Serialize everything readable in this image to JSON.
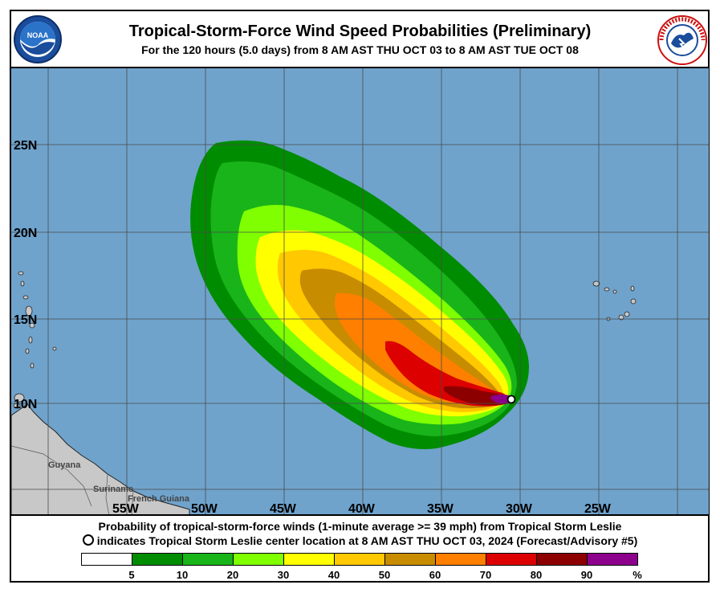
{
  "header": {
    "title": "Tropical-Storm-Force Wind Speed Probabilities (Preliminary)",
    "subtitle": "For the 120 hours (5.0 days) from 8 AM AST THU OCT 03 to 8 AM AST TUE OCT 08",
    "left_logo": {
      "text": "NOAA",
      "icon": "noaa-logo-icon"
    },
    "right_logo": {
      "text": "NATIONAL WEATHER SERVICE",
      "icon": "nws-logo-icon"
    }
  },
  "map": {
    "lat_labels": [
      "25N",
      "20N",
      "15N",
      "10N"
    ],
    "lon_labels": [
      "55W",
      "50W",
      "45W",
      "40W",
      "35W",
      "30W",
      "25W"
    ],
    "place_labels": [
      "Guyana",
      "Suriname",
      "French Guiana"
    ],
    "storm_center": {
      "lon": "30.5W",
      "lat": "10.2N"
    },
    "colors": {
      "ocean": "#6fa3cc",
      "land": "#c8c8c8"
    }
  },
  "footer": {
    "line1": "Probability of tropical-storm-force winds (1-minute average >= 39 mph) from Tropical Storm Leslie",
    "line2": "indicates Tropical Storm Leslie center location at 8 AM AST THU OCT 03, 2024 (Forecast/Advisory #5)"
  },
  "legend": {
    "colors": [
      "#ffffff",
      "#008c00",
      "#19b419",
      "#7fff00",
      "#ffff00",
      "#ffc800",
      "#c88c00",
      "#ff7f00",
      "#dc0000",
      "#8c0000",
      "#8c008c"
    ],
    "ticks": [
      "5",
      "10",
      "20",
      "30",
      "40",
      "50",
      "60",
      "70",
      "80",
      "90",
      "%"
    ]
  }
}
